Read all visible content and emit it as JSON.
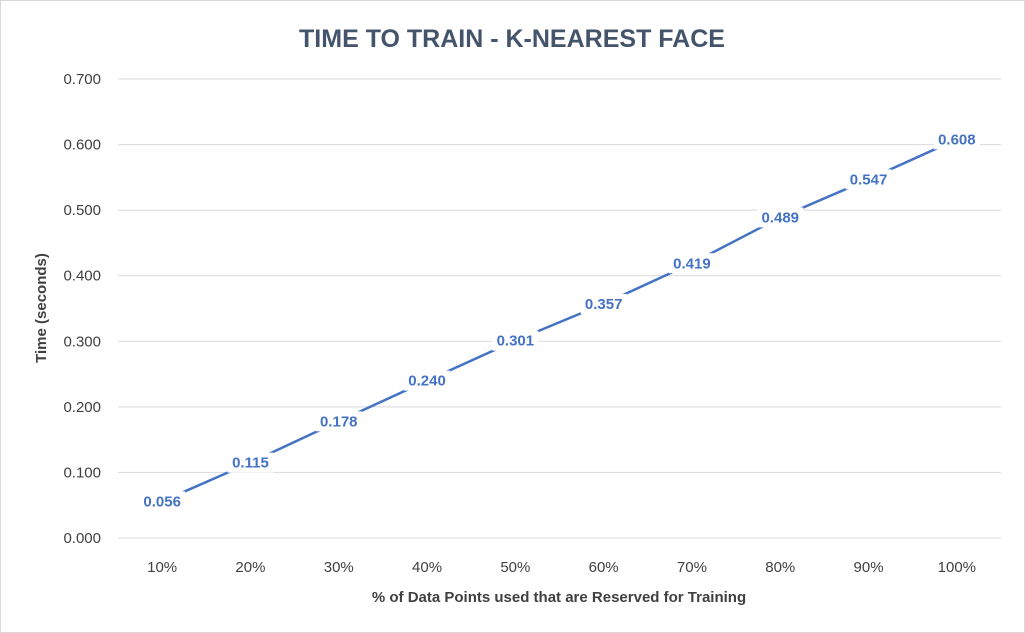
{
  "chart_data": {
    "type": "line",
    "title": "TIME TO TRAIN - K-NEAREST FACE",
    "xlabel": "% of Data Points used that are Reserved for Training",
    "ylabel": "Time (seconds)",
    "categories": [
      "10%",
      "20%",
      "30%",
      "40%",
      "50%",
      "60%",
      "70%",
      "80%",
      "90%",
      "100%"
    ],
    "series": [
      {
        "values": [
          0.056,
          0.115,
          0.178,
          0.24,
          0.301,
          0.357,
          0.419,
          0.489,
          0.547,
          0.608
        ],
        "labels": [
          "0.056",
          "0.115",
          "0.178",
          "0.240",
          "0.301",
          "0.357",
          "0.419",
          "0.489",
          "0.547",
          "0.608"
        ],
        "color": "#4472c4"
      }
    ],
    "yticks": [
      "0.000",
      "0.100",
      "0.200",
      "0.300",
      "0.400",
      "0.500",
      "0.600",
      "0.700"
    ],
    "ylim": [
      0,
      0.7
    ],
    "grid": true,
    "legend": "none"
  }
}
